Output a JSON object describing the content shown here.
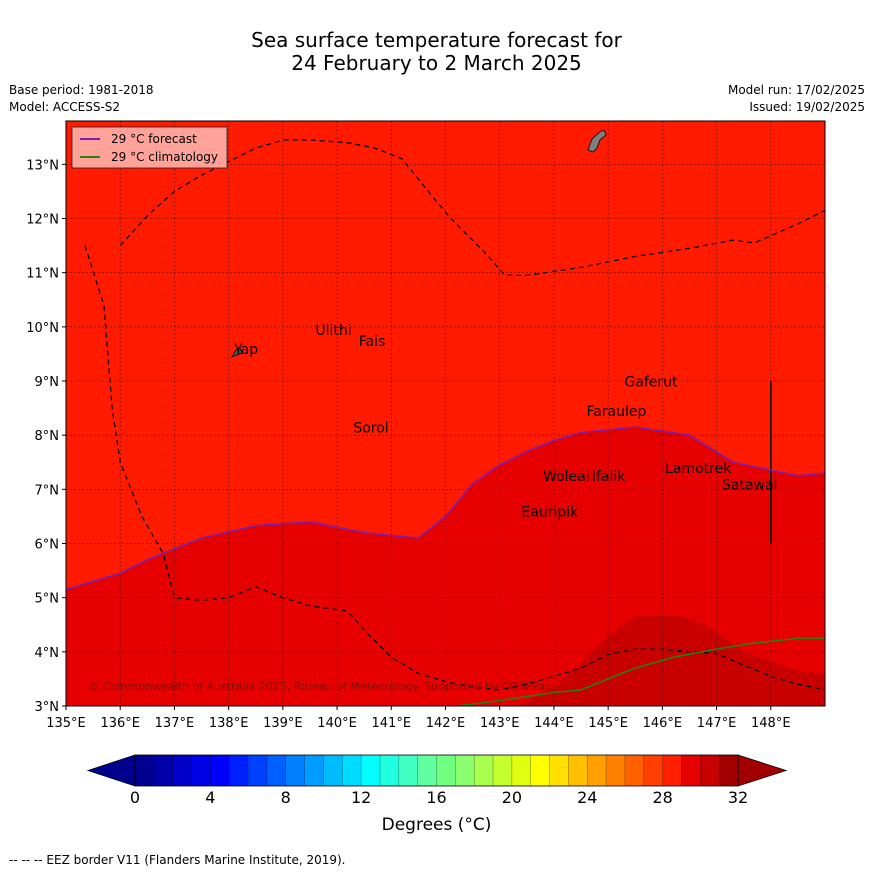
{
  "header": {
    "title_line1": "Sea surface temperature forecast for",
    "title_line2": "24 February to 2 March 2025",
    "base_period": "Base period: 1981-2018",
    "model": "Model: ACCESS-S2",
    "model_run": "Model run: 17/02/2025",
    "issued": "Issued: 19/02/2025"
  },
  "footer": {
    "eez_note": "--  --  -- EEZ border V11 (Flanders Marine Institute, 2019)."
  },
  "colors": {
    "background_sst": "#ff1a00",
    "band_warmer": "#e60000",
    "band_warmest": "#c80000",
    "forecast_line": "#7a1fb0",
    "climatology_line": "#2a7d0f",
    "legend_bg": "#ffa39a"
  },
  "chart_data": {
    "type": "map",
    "xlim": [
      135,
      149
    ],
    "ylim": [
      3,
      13.8
    ],
    "x_ticks": [
      135,
      136,
      137,
      138,
      139,
      140,
      141,
      142,
      143,
      144,
      145,
      146,
      147,
      148
    ],
    "x_tick_labels": [
      "135°E",
      "136°E",
      "137°E",
      "138°E",
      "139°E",
      "140°E",
      "141°E",
      "142°E",
      "143°E",
      "144°E",
      "145°E",
      "146°E",
      "147°E",
      "148°E"
    ],
    "y_ticks": [
      3,
      4,
      5,
      6,
      7,
      8,
      9,
      10,
      11,
      12,
      13
    ],
    "y_tick_labels": [
      "3°N",
      "4°N",
      "5°N",
      "6°N",
      "7°N",
      "8°N",
      "9°N",
      "10°N",
      "11°N",
      "12°N",
      "13°N"
    ],
    "grid": true,
    "legend": {
      "position": "top-left",
      "entries": [
        {
          "label": "29 °C  forecast",
          "color": "#7a1fb0"
        },
        {
          "label": "29 °C  climatology",
          "color": "#2a7d0f"
        }
      ]
    },
    "forecast_29C_isotherm": [
      [
        135,
        5.15
      ],
      [
        136,
        5.45
      ],
      [
        136.5,
        5.7
      ],
      [
        137,
        5.9
      ],
      [
        137.5,
        6.1
      ],
      [
        138.5,
        6.33
      ],
      [
        139.5,
        6.4
      ],
      [
        140.5,
        6.2
      ],
      [
        141.5,
        6.1
      ],
      [
        142,
        6.5
      ],
      [
        142.5,
        7.1
      ],
      [
        143,
        7.45
      ],
      [
        143.5,
        7.7
      ],
      [
        144,
        7.9
      ],
      [
        144.5,
        8.05
      ],
      [
        145.5,
        8.15
      ],
      [
        146.5,
        8.0
      ],
      [
        147.3,
        7.5
      ],
      [
        148.5,
        7.25
      ],
      [
        149,
        7.3
      ]
    ],
    "warmer_band_top": [
      [
        143.3,
        3
      ],
      [
        144,
        3.35
      ],
      [
        144.5,
        3.8
      ],
      [
        145,
        4.3
      ],
      [
        145.5,
        4.65
      ],
      [
        146.3,
        4.67
      ],
      [
        146.8,
        4.5
      ],
      [
        147.5,
        4.0
      ],
      [
        148.5,
        3.65
      ],
      [
        149,
        3.6
      ]
    ],
    "climatology_29C_isotherm": [
      [
        142.2,
        3
      ],
      [
        143,
        3.1
      ],
      [
        144,
        3.25
      ],
      [
        144.5,
        3.3
      ],
      [
        145,
        3.5
      ],
      [
        145.5,
        3.7
      ],
      [
        146.2,
        3.9
      ],
      [
        147,
        4.05
      ],
      [
        147.6,
        4.15
      ],
      [
        148.5,
        4.25
      ],
      [
        149,
        4.25
      ]
    ],
    "eez_border": [
      [
        136,
        11.5
      ],
      [
        136.5,
        12.05
      ],
      [
        137,
        12.5
      ],
      [
        137.5,
        12.8
      ],
      [
        138,
        13.05
      ],
      [
        138.5,
        13.3
      ],
      [
        139,
        13.45
      ],
      [
        139.5,
        13.45
      ],
      [
        140.2,
        13.4
      ],
      [
        140.7,
        13.3
      ],
      [
        141.2,
        13.1
      ],
      [
        141.6,
        12.6
      ],
      [
        142.1,
        12.0
      ],
      [
        142.7,
        11.4
      ],
      [
        143.1,
        10.95
      ],
      [
        143.5,
        10.95
      ],
      [
        144.5,
        11.1
      ],
      [
        145.5,
        11.3
      ],
      [
        146.5,
        11.45
      ],
      [
        147.3,
        11.6
      ],
      [
        147.7,
        11.55
      ],
      [
        148.5,
        11.9
      ],
      [
        149,
        12.15
      ]
    ],
    "eez_border_west": [
      [
        135.35,
        11.5
      ],
      [
        135.7,
        10.4
      ],
      [
        135.85,
        8.5
      ],
      [
        136.0,
        7.5
      ],
      [
        136.4,
        6.5
      ],
      [
        136.8,
        5.8
      ],
      [
        137.0,
        5.0
      ],
      [
        137.5,
        4.95
      ],
      [
        138,
        5.0
      ],
      [
        138.5,
        5.2
      ],
      [
        139,
        5.0
      ],
      [
        139.5,
        4.85
      ],
      [
        140.2,
        4.75
      ],
      [
        140.5,
        4.4
      ],
      [
        141,
        3.9
      ],
      [
        141.5,
        3.6
      ],
      [
        142,
        3.45
      ],
      [
        142.5,
        3.35
      ],
      [
        143,
        3.3
      ],
      [
        143.5,
        3.4
      ],
      [
        144,
        3.55
      ],
      [
        144.5,
        3.7
      ],
      [
        145,
        3.95
      ],
      [
        145.5,
        4.05
      ],
      [
        146,
        4.05
      ],
      [
        146.5,
        4.0
      ],
      [
        147,
        3.97
      ],
      [
        147.5,
        3.75
      ],
      [
        148,
        3.55
      ],
      [
        148.5,
        3.4
      ],
      [
        149,
        3.3
      ]
    ],
    "islands": [
      {
        "name": "Yap",
        "lon": 138.1,
        "lat": 9.5
      },
      {
        "name": "Ulithi",
        "lon": 139.6,
        "lat": 9.85
      },
      {
        "name": "Fais",
        "lon": 140.4,
        "lat": 9.65
      },
      {
        "name": "Sorol",
        "lon": 140.3,
        "lat": 8.05
      },
      {
        "name": "Gaferut",
        "lon": 145.3,
        "lat": 8.9
      },
      {
        "name": "Faraulep",
        "lon": 144.6,
        "lat": 8.35
      },
      {
        "name": "Woleai",
        "lon": 143.8,
        "lat": 7.15
      },
      {
        "name": "Ifalik",
        "lon": 144.7,
        "lat": 7.15
      },
      {
        "name": "Lamotrek",
        "lon": 146.05,
        "lat": 7.3
      },
      {
        "name": "Satawal",
        "lon": 147.1,
        "lat": 7.0
      },
      {
        "name": "Eauripik",
        "lon": 143.4,
        "lat": 6.5
      }
    ],
    "copyright": "© Commonwealth of Australia 2025, Bureau of Meteorology. Supported by COSPPac",
    "colorbar": {
      "ticks": [
        "0",
        "4",
        "8",
        "12",
        "16",
        "20",
        "24",
        "28",
        "32"
      ],
      "min": 0,
      "max": 32,
      "step": 1,
      "label": "Degrees (°C)",
      "colors": [
        "#00008f",
        "#0000a8",
        "#0000c8",
        "#0000e4",
        "#0000ff",
        "#0020ff",
        "#0040ff",
        "#0060ff",
        "#0080ff",
        "#009cff",
        "#00bcff",
        "#00dcff",
        "#00ffff",
        "#20ffe0",
        "#40ffc0",
        "#60ffa0",
        "#70ff80",
        "#8cff70",
        "#a8ff50",
        "#c4ff30",
        "#e0ff10",
        "#ffff00",
        "#ffe000",
        "#ffc000",
        "#ffa000",
        "#ff8000",
        "#ff6000",
        "#ff4000",
        "#ff2000",
        "#e60000",
        "#c80000",
        "#a00000"
      ]
    }
  }
}
